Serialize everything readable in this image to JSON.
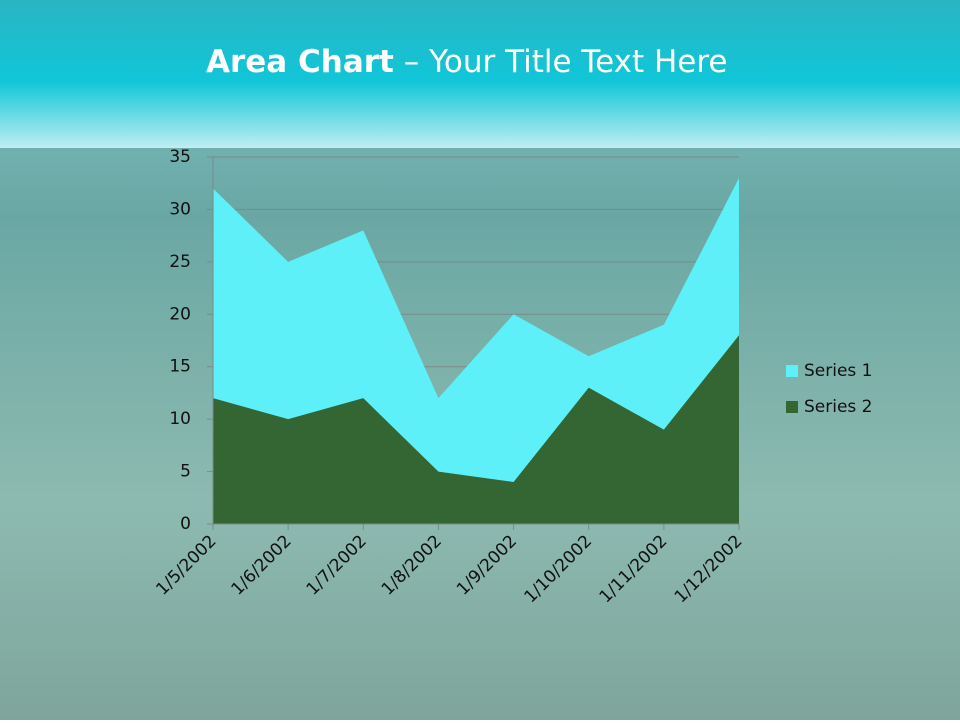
{
  "chart_data": {
    "type": "area",
    "title_bold": "Area Chart",
    "title": "– Your Title Text Here",
    "categories": [
      "1/5/2002",
      "1/6/2002",
      "1/7/2002",
      "1/8/2002",
      "1/9/2002",
      "1/10/2002",
      "1/11/2002",
      "1/12/2002"
    ],
    "series": [
      {
        "name": "Series 1",
        "color": "#5ef0f8",
        "values": [
          32,
          25,
          28,
          12,
          20,
          16,
          19,
          33
        ]
      },
      {
        "name": "Series 2",
        "color": "#336633",
        "values": [
          12,
          10,
          12,
          5,
          4,
          13,
          9,
          18
        ]
      }
    ],
    "ylim": [
      0,
      35
    ],
    "yticks": [
      0,
      5,
      10,
      15,
      20,
      25,
      30,
      35
    ],
    "grid": true,
    "legend": "right"
  }
}
